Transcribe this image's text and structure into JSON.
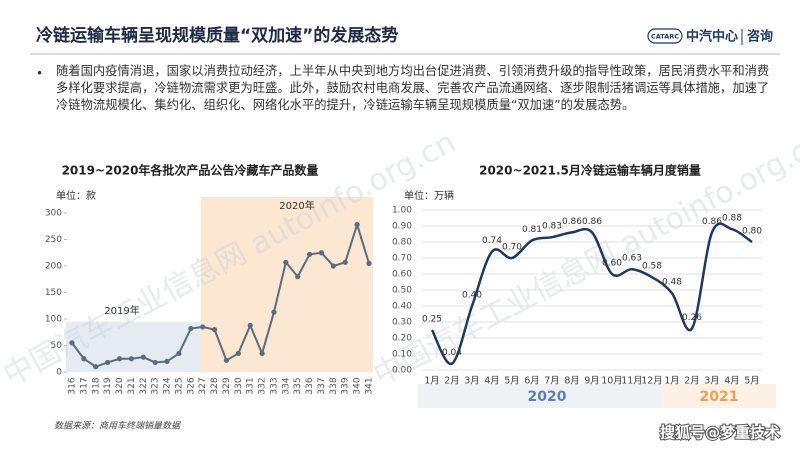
{
  "header": {
    "title": "冷链运输车辆呈现规模质量“双加速”的发展态势",
    "logo": "CATARC",
    "brand": "中汽中心",
    "section": "咨询"
  },
  "bullet": "随着国内疫情消退，国家以消费拉动经济，上半年从中央到地方均出台促进消费、引领消费升级的指导性政策，居民消费水平和消费多样化要求提高，冷链物流需求更为旺盛。此外，鼓励农村电商发展、完善农产品流通网络、逐步限制活猪调运等具体措施，加速了冷链物流规模化、集约化、组织化、网络化水平的提升，冷链运输车辆呈现规模质量“双加速”的发展态势。",
  "watermark": "中国汽车工业信息网 autoinfo.org.cn",
  "corner_mark": "搜狐号@梦重技术",
  "chart_data": [
    {
      "type": "line",
      "title": "2019~2020年各批次产品公告冷藏车产品数量",
      "y_label": "单位：款",
      "categories": [
        "316",
        "317",
        "318",
        "319",
        "320",
        "321",
        "322",
        "323",
        "324",
        "325",
        "326",
        "327",
        "328",
        "329",
        "330",
        "331",
        "332",
        "333",
        "334",
        "335",
        "336",
        "337",
        "338",
        "339",
        "340",
        "341"
      ],
      "values": [
        55,
        25,
        10,
        18,
        25,
        25,
        28,
        18,
        20,
        35,
        82,
        85,
        80,
        22,
        35,
        88,
        35,
        113,
        207,
        180,
        222,
        225,
        200,
        207,
        278,
        205
      ],
      "color": "#5b6b80",
      "ylim": [
        0,
        300
      ],
      "yticks": [
        0,
        50,
        100,
        150,
        200,
        250,
        300
      ],
      "grid": false,
      "annotations": [
        "2019年",
        "2020年"
      ],
      "source": "数据来源：商用车终端销量数据"
    },
    {
      "type": "smooth-line",
      "title": "2020~2021.5月冷链运输车辆月度销量",
      "y_label": "单位：万辆",
      "categories": [
        "1月",
        "2月",
        "3月",
        "4月",
        "5月",
        "6月",
        "7月",
        "8月",
        "9月",
        "10月",
        "11月",
        "12月",
        "1月",
        "2月",
        "3月",
        "4月",
        "5月"
      ],
      "values": [
        0.25,
        0.04,
        0.4,
        0.74,
        0.7,
        0.81,
        0.83,
        0.86,
        0.86,
        0.6,
        0.63,
        0.58,
        0.48,
        0.26,
        0.86,
        0.88,
        0.8
      ],
      "value_labels": [
        "0.25",
        "0.04",
        "0.40",
        "0.74",
        "0.70",
        "0.81",
        "0.83",
        "0.86",
        "0.86",
        "0.60",
        "0.63",
        "0.58",
        "0.48",
        "0.26",
        "0.86",
        "0.88",
        "0.80"
      ],
      "color": "#1f3864",
      "ylim": [
        0,
        1
      ],
      "yticks": [
        {
          "value": 0,
          "label": "0.00"
        },
        {
          "value": 0.1,
          "label": "0.10"
        },
        {
          "value": 0.2,
          "label": "0.20"
        },
        {
          "value": 0.3,
          "label": "0.30"
        },
        {
          "value": 0.4,
          "label": "0.40"
        },
        {
          "value": 0.5,
          "label": "0.50"
        },
        {
          "value": 0.6,
          "label": "0.60"
        },
        {
          "value": 0.7,
          "label": "0.70"
        },
        {
          "value": 0.8,
          "label": "0.80"
        },
        {
          "value": 0.9,
          "label": "0.90"
        },
        {
          "value": 1,
          "label": "1.00"
        }
      ],
      "grid": true,
      "groups": [
        "2020",
        "2021"
      ]
    }
  ]
}
